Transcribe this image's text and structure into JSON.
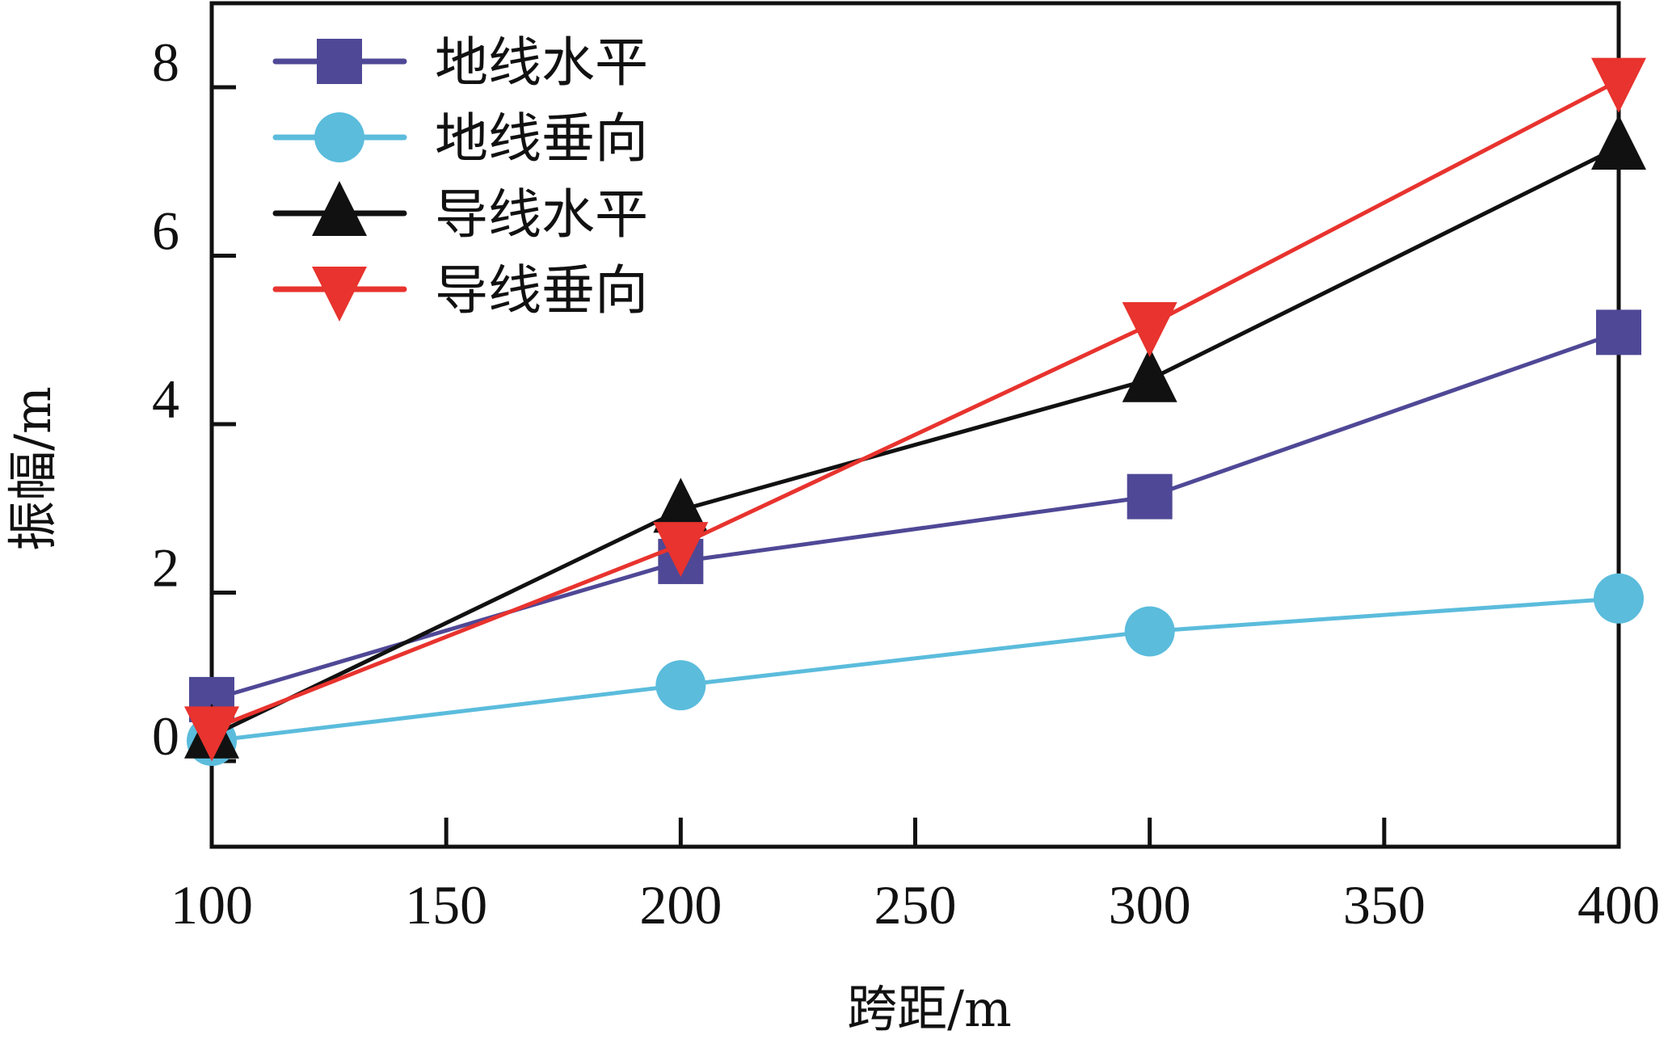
{
  "chart_data": {
    "type": "line",
    "title": "",
    "xlabel": "跨距/m",
    "ylabel": "振幅/m",
    "xlim": [
      100,
      400
    ],
    "ylim": [
      -1,
      9
    ],
    "x_ticks": [
      100,
      150,
      200,
      250,
      300,
      350,
      400
    ],
    "x_tick_labels": [
      "100",
      "150",
      "200",
      "250",
      "300",
      "350",
      "400"
    ],
    "y_ticks": [
      0,
      2,
      4,
      6,
      8
    ],
    "y_tick_labels": [
      "0",
      "2",
      "4",
      "6",
      "8"
    ],
    "grid": false,
    "legend_position": "top-left",
    "x": [
      100,
      200,
      300,
      400
    ],
    "series": [
      {
        "name": "地线水平",
        "marker": "square",
        "color": "#4F4896",
        "values": [
          0.73,
          2.37,
          3.14,
          5.09
        ]
      },
      {
        "name": "地线垂向",
        "marker": "circle",
        "color": "#5BBCDC",
        "values": [
          0.24,
          0.9,
          1.54,
          1.93
        ]
      },
      {
        "name": "导线水平",
        "marker": "triangle-up",
        "color": "#111111",
        "values": [
          0.3,
          2.98,
          4.53,
          7.29
        ]
      },
      {
        "name": "导线垂向",
        "marker": "triangle-down",
        "color": "#E8332E",
        "values": [
          0.38,
          2.57,
          5.18,
          8.08
        ]
      }
    ]
  }
}
